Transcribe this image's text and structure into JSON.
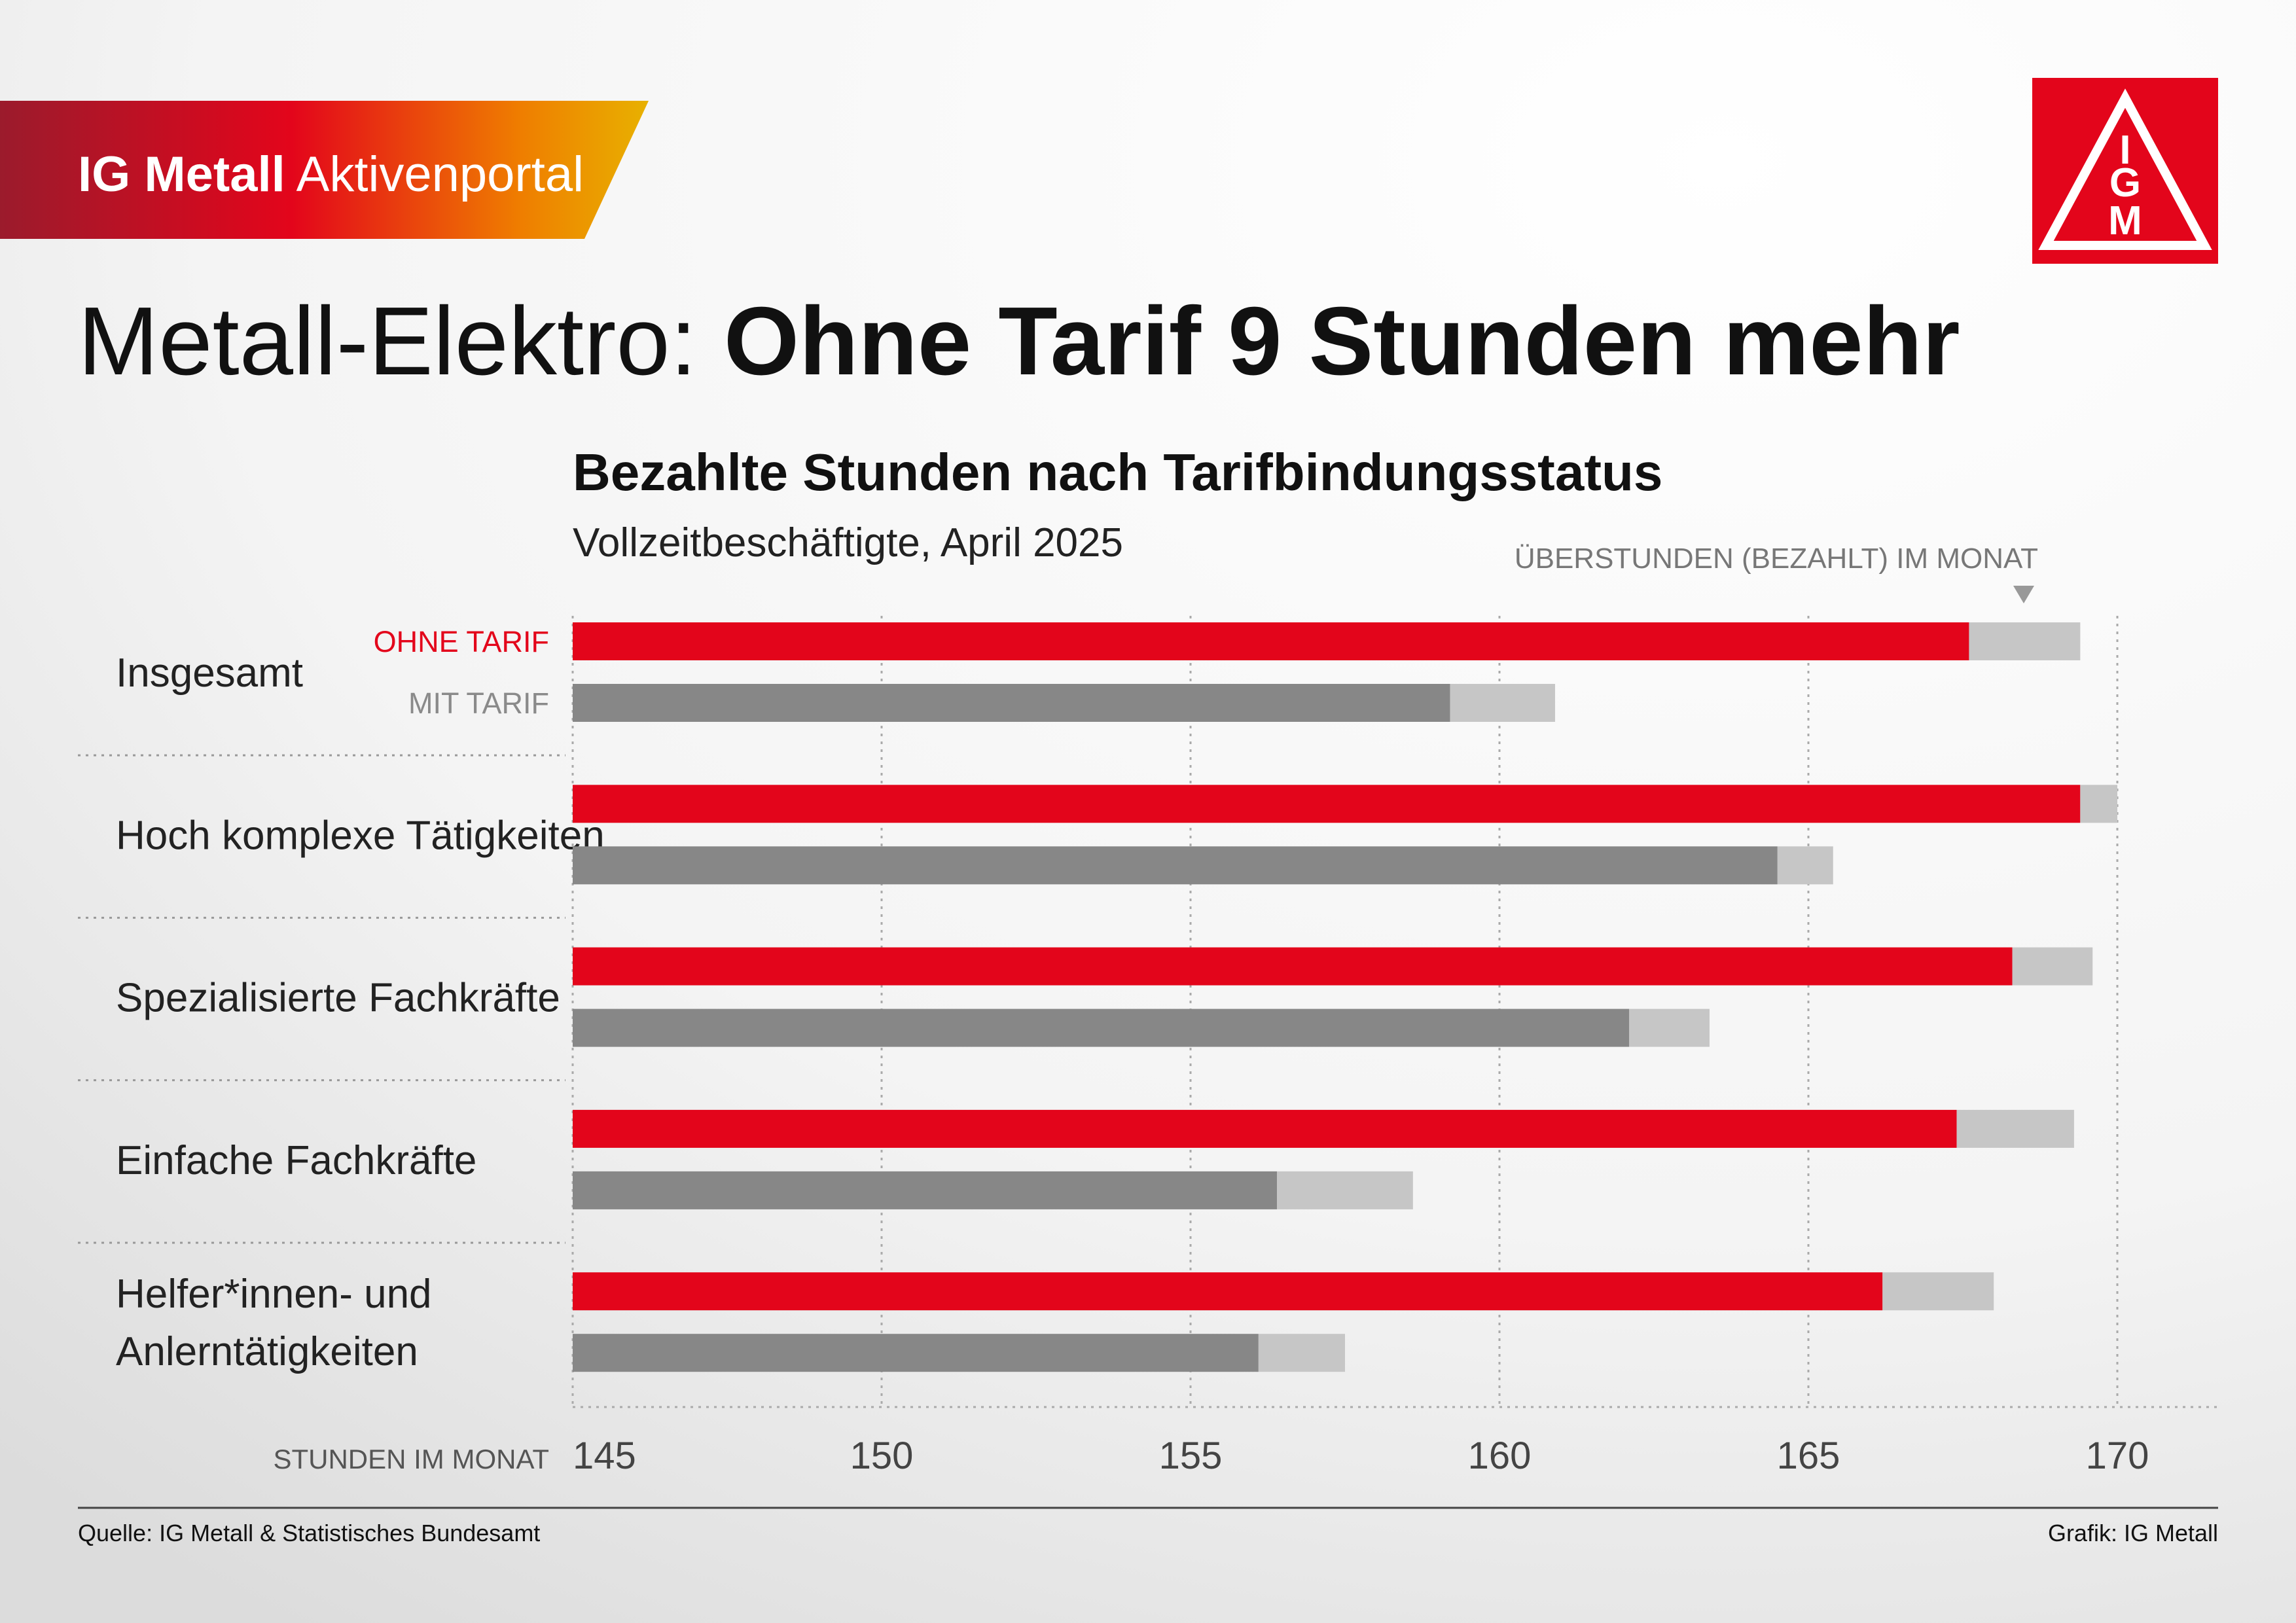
{
  "header": {
    "brand": "IG Metall",
    "portal": "Aktivenportal",
    "logo_letters": [
      "I",
      "G",
      "M"
    ]
  },
  "title_light": "Metall-Elektro:",
  "title_bold": "Ohne Tarif 9 Stunden mehr",
  "chart_data": {
    "type": "bar",
    "orientation": "horizontal",
    "title": "Bezahlte Stunden nach Tarifbindungsstatus",
    "subtitle": "Vollzeitbeschäftigte, April 2025",
    "annotation": "ÜBERSTUNDEN (BEZAHLT) IM MONAT",
    "x_label": "STUNDEN IM MONAT",
    "categories": [
      "Insgesamt",
      "Hoch komplexe Tätigkeiten",
      "Spezialisierte Fachkräfte",
      "Einfache Fachkräfte",
      "Helfer*innen- und\nAnlerntätigkeiten"
    ],
    "series": [
      {
        "name": "OHNE TARIF",
        "color": "#e3051b",
        "label_color": "#e3051b",
        "values": [
          167.6,
          169.4,
          168.3,
          167.4,
          166.2
        ],
        "overtime": [
          1.8,
          0.6,
          1.3,
          1.9,
          1.8
        ]
      },
      {
        "name": "MIT TARIF",
        "color": "#878787",
        "label_color": "#8a8a8a",
        "values": [
          159.2,
          164.5,
          162.1,
          156.4,
          156.1
        ],
        "overtime": [
          1.7,
          0.9,
          1.3,
          2.2,
          1.4
        ]
      }
    ],
    "overtime_color": "#c6c6c6",
    "xlim": [
      145,
      170
    ],
    "xticks": [
      145,
      150,
      155,
      160,
      165,
      170
    ],
    "grid": true
  },
  "footer": {
    "source": "Quelle: IG Metall & Statistisches Bundesamt",
    "credit": "Grafik: IG Metall"
  }
}
